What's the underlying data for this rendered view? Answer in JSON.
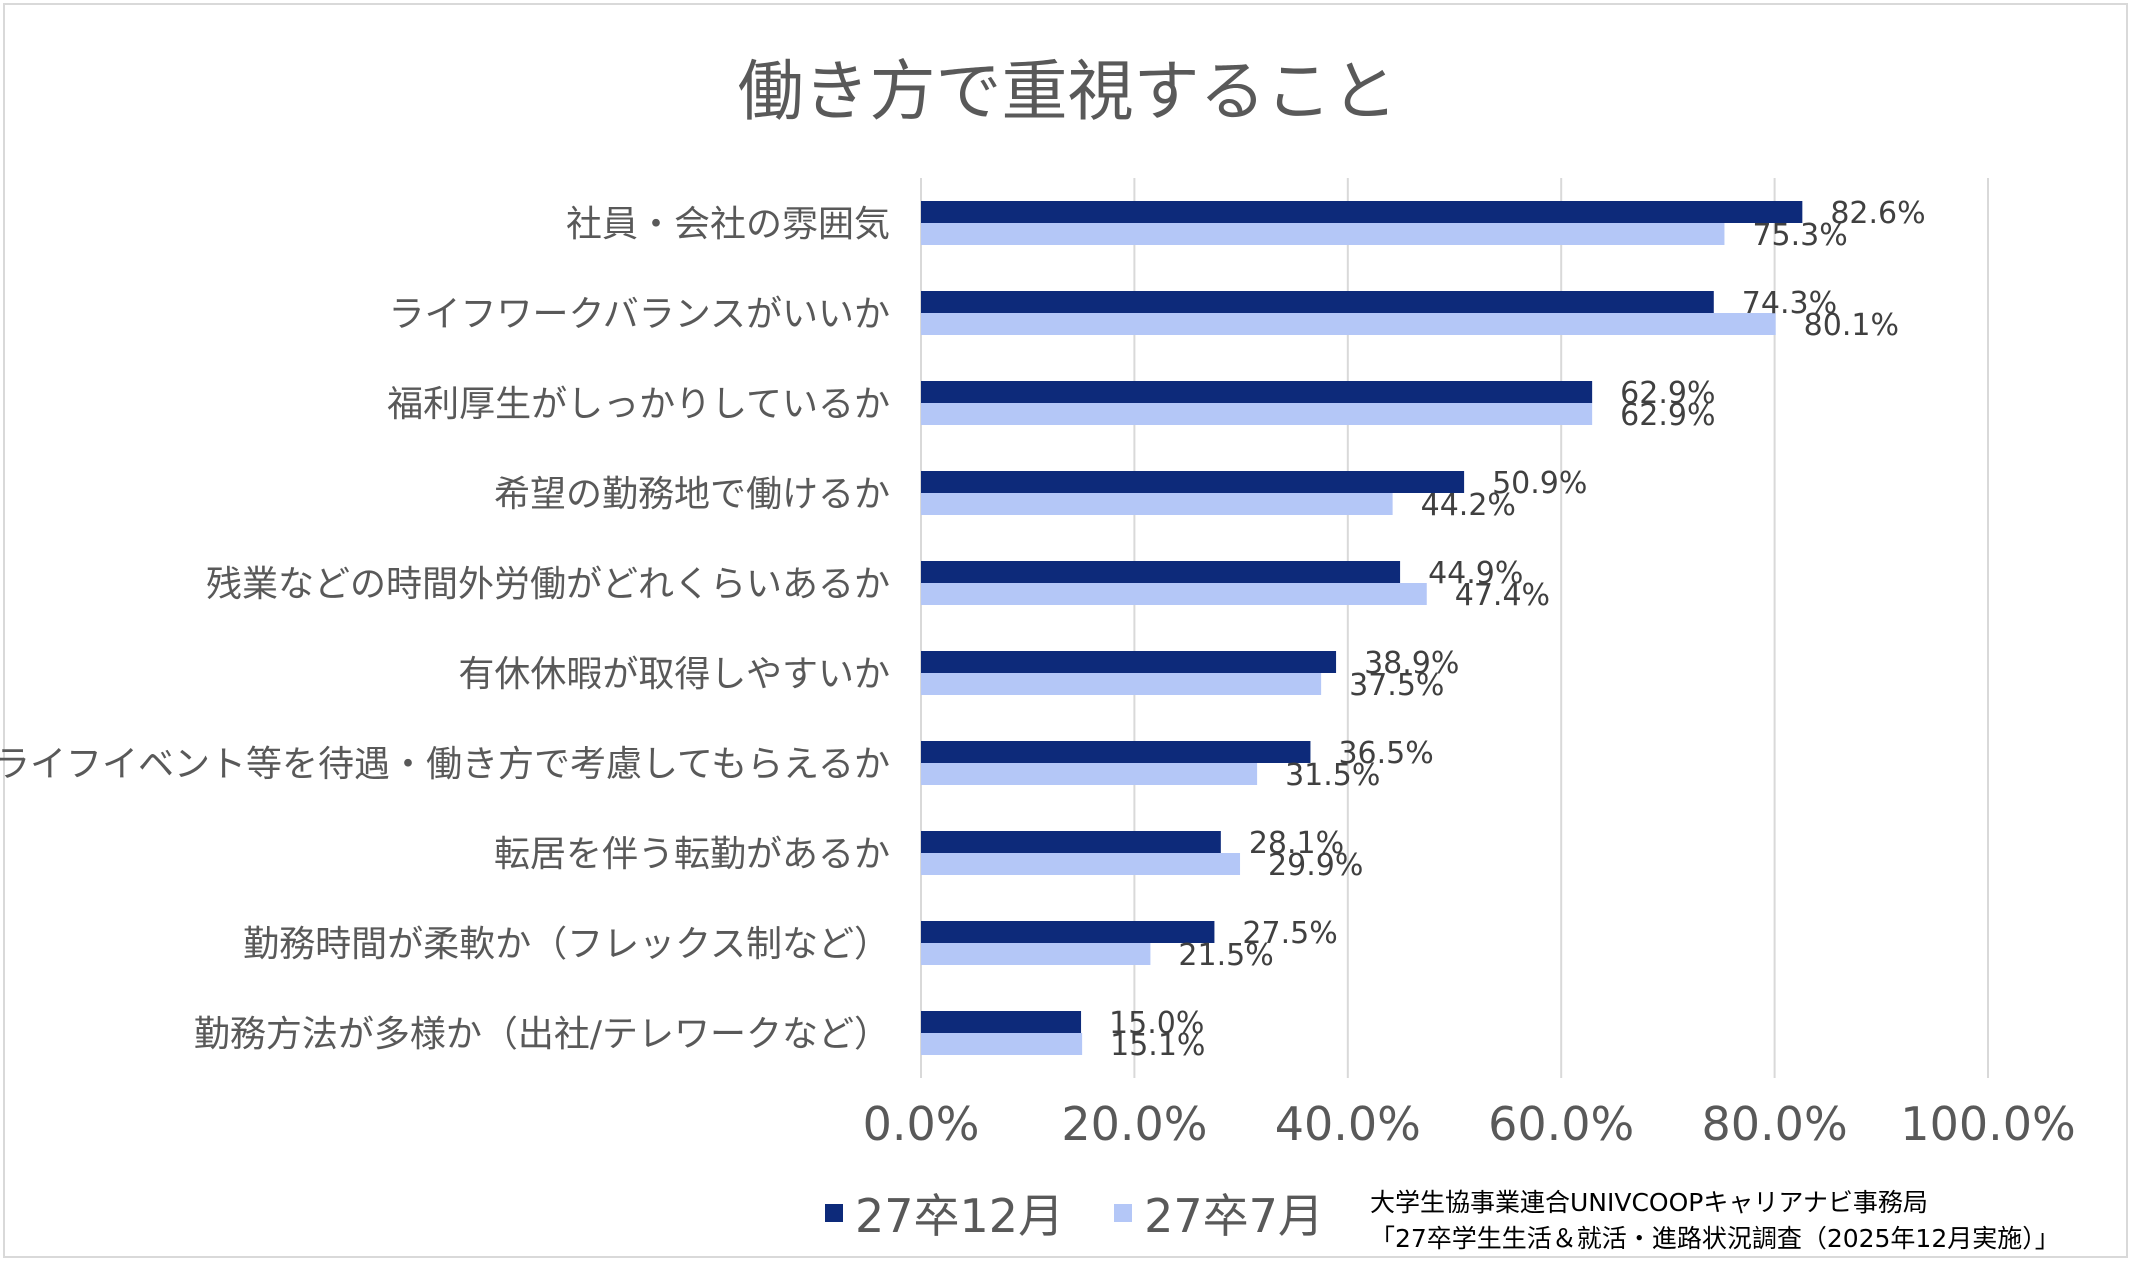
{
  "chart_data": {
    "type": "bar",
    "orientation": "horizontal",
    "title": "働き方で重視すること",
    "categories": [
      "社員・会社の雰囲気",
      "ライフワークバランスがいいか",
      "福利厚生がしっかりしているか",
      "希望の勤務地で働けるか",
      "残業などの時間外労働がどれくらいあるか",
      "有休休暇が取得しやすいか",
      "ライフイベント等を待遇・働き方で考慮してもらえるか",
      "転居を伴う転勤があるか",
      "勤務時間が柔軟か（フレックス制など）",
      "勤務方法が多様か（出社/テレワークなど）"
    ],
    "series": [
      {
        "name": "27卒12月",
        "color": "#0d2a7a",
        "values": [
          82.6,
          74.3,
          62.9,
          50.9,
          44.9,
          38.9,
          36.5,
          28.1,
          27.5,
          15.0
        ],
        "labels": [
          "82.6%",
          "74.3%",
          "62.9%",
          "50.9%",
          "44.9%",
          "38.9%",
          "36.5%",
          "28.1%",
          "27.5%",
          "15.0%"
        ]
      },
      {
        "name": "27卒7月",
        "color": "#b4c7f7",
        "values": [
          75.3,
          80.1,
          62.9,
          44.2,
          47.4,
          37.5,
          31.5,
          29.9,
          21.5,
          15.1
        ],
        "labels": [
          "75.3%",
          "80.1%",
          "62.9%",
          "44.2%",
          "47.4%",
          "37.5%",
          "31.5%",
          "29.9%",
          "21.5%",
          "15.1%"
        ]
      }
    ],
    "xlim": [
      0,
      100
    ],
    "xticks": [
      0,
      20,
      40,
      60,
      80,
      100
    ],
    "xtick_labels": [
      "0.0%",
      "20.0%",
      "40.0%",
      "60.0%",
      "80.0%",
      "100.0%"
    ],
    "grid": true,
    "legend_position": "bottom"
  },
  "source": {
    "line1": "大学生協事業連合UNIVCOOPキャリアナビ事務局",
    "line2": "「27卒学生生活＆就活・進路状況調査（2025年12月実施）」"
  }
}
